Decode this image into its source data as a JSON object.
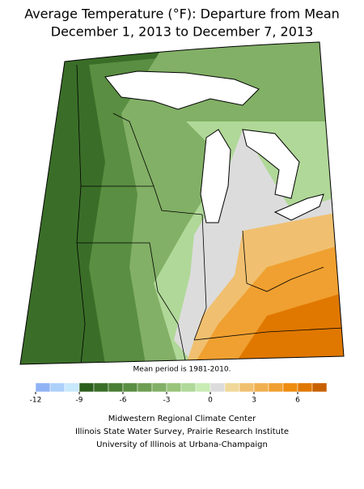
{
  "header": {
    "title": "Average Temperature (°F): Departure from Mean",
    "subtitle": "December 1, 2013 to December 7, 2013"
  },
  "map": {
    "note": "Mean period is 1981-2010."
  },
  "legend": {
    "range": [
      -12,
      8
    ],
    "ticks": [
      -12,
      -9,
      -6,
      -3,
      0,
      3,
      6
    ],
    "colors": [
      "#8fb4f5",
      "#acd0fa",
      "#c8e8fc",
      "#2c5e1c",
      "#3a6e28",
      "#4a7e34",
      "#5a8e42",
      "#6e9e52",
      "#82b066",
      "#98c47a",
      "#b0d898",
      "#c8ecb4",
      "#dcdcdc",
      "#f0d898",
      "#f0c070",
      "#f0b050",
      "#f0a030",
      "#ee8c10",
      "#e07800",
      "#c86000"
    ]
  },
  "footer": {
    "lines": [
      "Midwestern Regional Climate Center",
      "Illinois State Water Survey, Prairie Research Institute",
      "University of Illinois at Urbana-Champaign"
    ]
  }
}
